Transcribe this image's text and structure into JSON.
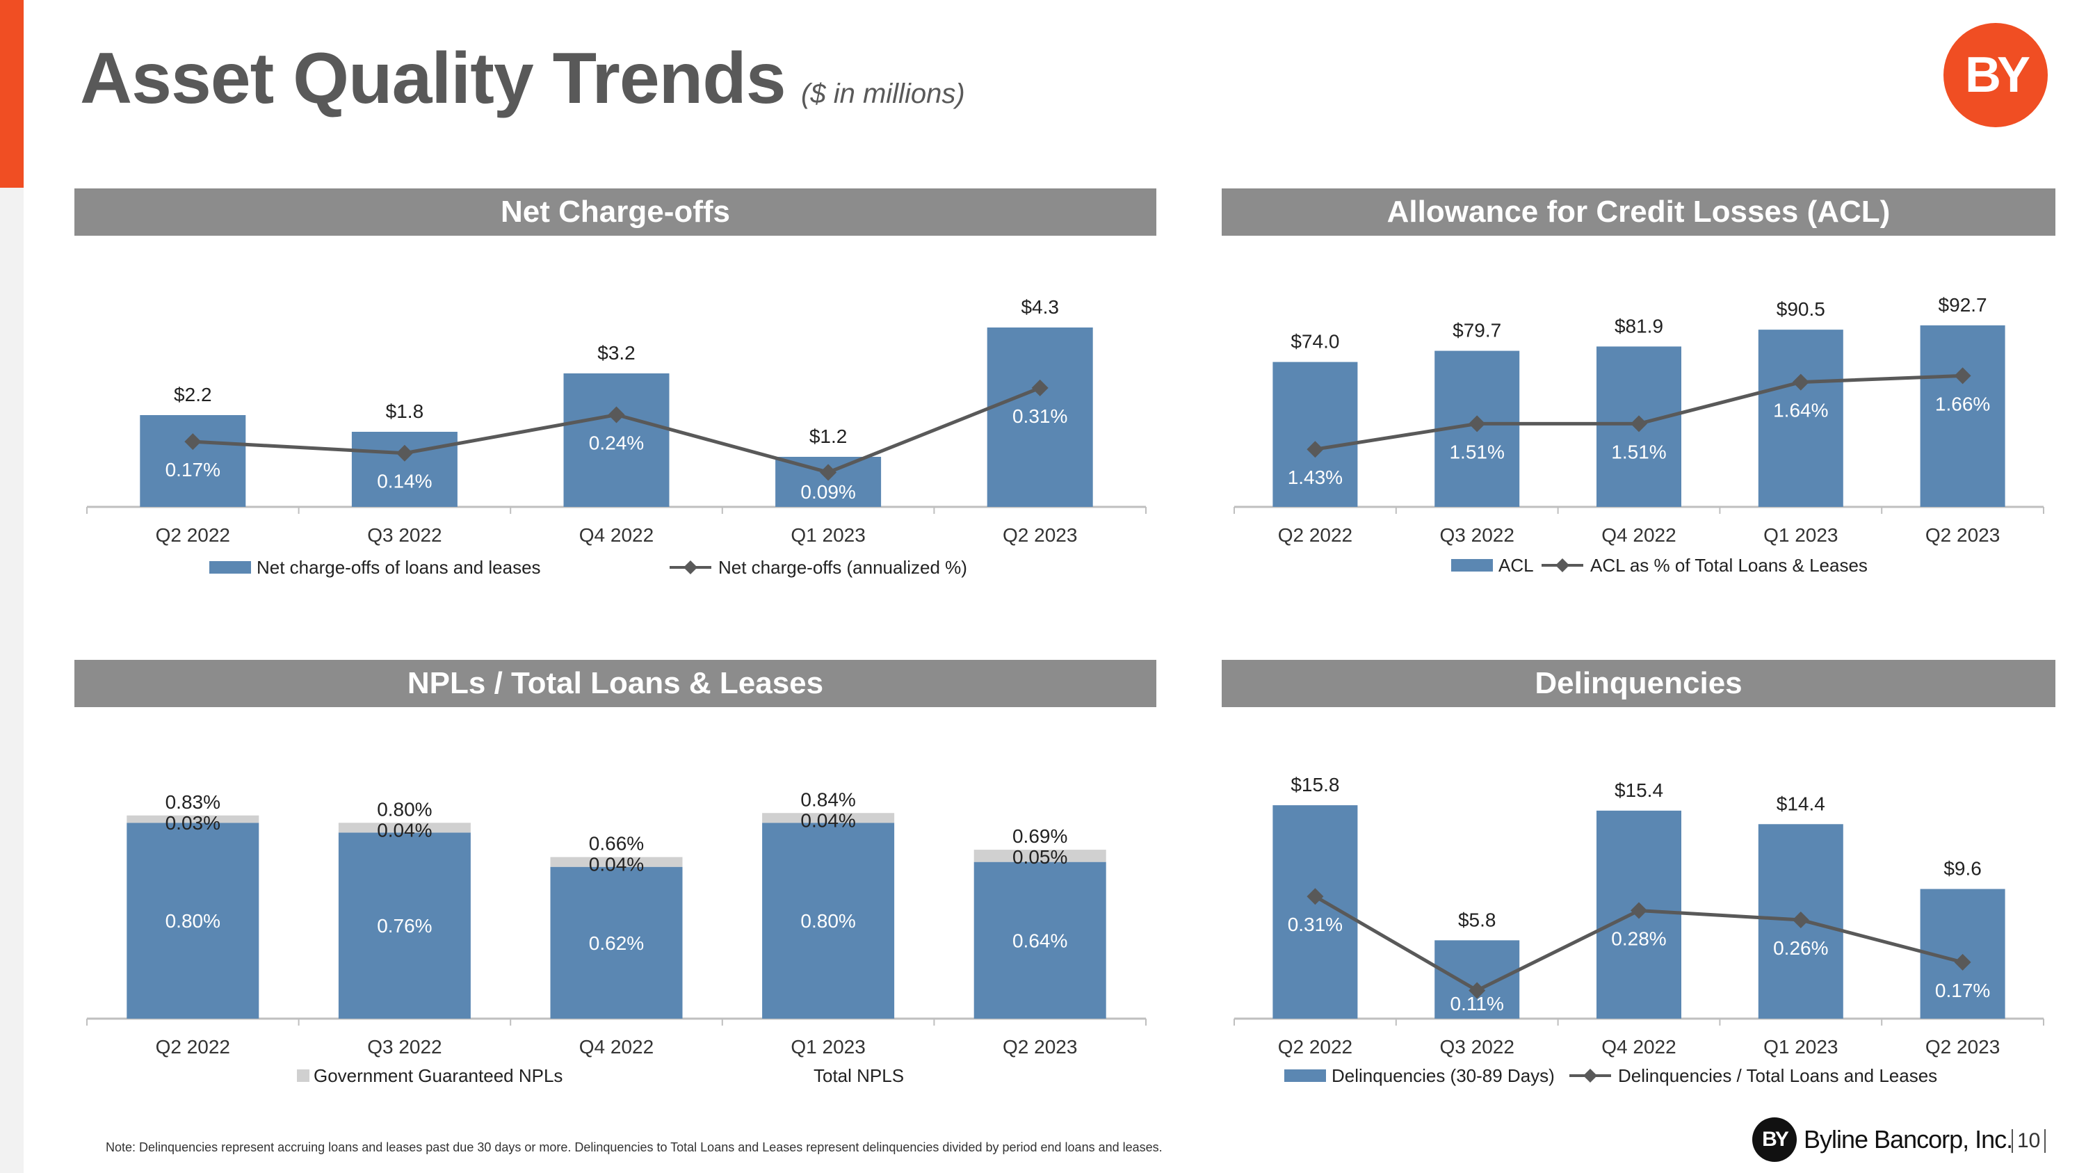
{
  "page": {
    "title": "Asset Quality Trends",
    "subtitle": "($ in millions)",
    "logo_text": "BY",
    "footnote": "Note: Delinquencies represent accruing loans and leases past due 30 days or more. Delinquencies to Total Loans and Leases represent delinquencies divided by period end loans and leases.",
    "footer_logo_text": "BY",
    "footer_company": "Byline Bancorp, Inc.",
    "page_number": "10",
    "colors": {
      "accent": "#f04e23",
      "bar": "#5b87b2",
      "gov_bar": "#d0d0d0",
      "line": "#595959",
      "header": "#8c8c8c"
    }
  },
  "chart_data": [
    {
      "id": "nco",
      "type": "bar",
      "header": "Net Charge-offs",
      "categories": [
        "Q2 2022",
        "Q3 2022",
        "Q4 2022",
        "Q1 2023",
        "Q2 2023"
      ],
      "series": [
        {
          "name": "Net charge-offs of loans and leases",
          "kind": "bar",
          "values": [
            2.2,
            1.8,
            3.2,
            1.2,
            4.3
          ],
          "labels": [
            "$2.2",
            "$1.8",
            "$3.2",
            "$1.2",
            "$4.3"
          ]
        },
        {
          "name": "Net charge-offs (annualized %)",
          "kind": "line",
          "values": [
            0.17,
            0.14,
            0.24,
            0.09,
            0.31
          ],
          "labels": [
            "0.17%",
            "0.14%",
            "0.24%",
            "0.09%",
            "0.31%"
          ]
        }
      ],
      "ylim_bar": [
        0,
        4.6
      ],
      "ylim_line": [
        0,
        0.5
      ]
    },
    {
      "id": "acl",
      "type": "bar",
      "header": "Allowance for Credit Losses (ACL)",
      "categories": [
        "Q2 2022",
        "Q3 2022",
        "Q4 2022",
        "Q1 2023",
        "Q2 2023"
      ],
      "series": [
        {
          "name": "ACL",
          "kind": "bar",
          "values": [
            74.0,
            79.7,
            81.9,
            90.5,
            92.7
          ],
          "labels": [
            "$74.0",
            "$79.7",
            "$81.9",
            "$90.5",
            "$92.7"
          ]
        },
        {
          "name": "ACL as % of Total Loans & Leases",
          "kind": "line",
          "values": [
            1.43,
            1.51,
            1.51,
            1.64,
            1.66
          ],
          "labels": [
            "1.43%",
            "1.51%",
            "1.51%",
            "1.64%",
            "1.66%"
          ]
        }
      ],
      "ylim_bar": [
        0,
        98
      ],
      "ylim_line": [
        1.25,
        1.85
      ]
    },
    {
      "id": "npl",
      "type": "bar",
      "stacked": true,
      "header": "NPLs / Total Loans & Leases",
      "categories": [
        "Q2 2022",
        "Q3 2022",
        "Q4 2022",
        "Q1 2023",
        "Q2 2023"
      ],
      "series": [
        {
          "name": "",
          "kind": "bar",
          "values": [
            0.8,
            0.76,
            0.62,
            0.8,
            0.64
          ],
          "labels": [
            "0.80%",
            "0.76%",
            "0.62%",
            "0.80%",
            "0.64%"
          ]
        },
        {
          "name": "Government Guaranteed NPLs",
          "kind": "stack",
          "values": [
            0.03,
            0.04,
            0.04,
            0.04,
            0.05
          ],
          "labels": [
            "0.03%",
            "0.04%",
            "0.04%",
            "0.04%",
            "0.05%"
          ]
        },
        {
          "name": "Total NPLS",
          "kind": "total",
          "values": [
            0.83,
            0.8,
            0.66,
            0.84,
            0.69
          ],
          "labels": [
            "0.83%",
            "0.80%",
            "0.66%",
            "0.84%",
            "0.69%"
          ]
        }
      ],
      "ylim_bar": [
        0,
        0.96
      ]
    },
    {
      "id": "del",
      "type": "bar",
      "header": "Delinquencies",
      "categories": [
        "Q2 2022",
        "Q3 2022",
        "Q4 2022",
        "Q1 2023",
        "Q2 2023"
      ],
      "series": [
        {
          "name": "Delinquencies (30-89 Days)",
          "kind": "bar",
          "values": [
            15.8,
            5.8,
            15.4,
            14.4,
            9.6
          ],
          "labels": [
            "$15.8",
            "$5.8",
            "$15.4",
            "$14.4",
            "$9.6"
          ]
        },
        {
          "name": "Delinquencies / Total Loans and Leases",
          "kind": "line",
          "values": [
            0.31,
            0.11,
            0.28,
            0.26,
            0.17
          ],
          "labels": [
            "0.31%",
            "0.11%",
            "0.28%",
            "0.26%",
            "0.17%"
          ]
        }
      ],
      "ylim_bar": [
        0,
        17.4
      ],
      "ylim_line": [
        0.05,
        0.55
      ]
    }
  ]
}
